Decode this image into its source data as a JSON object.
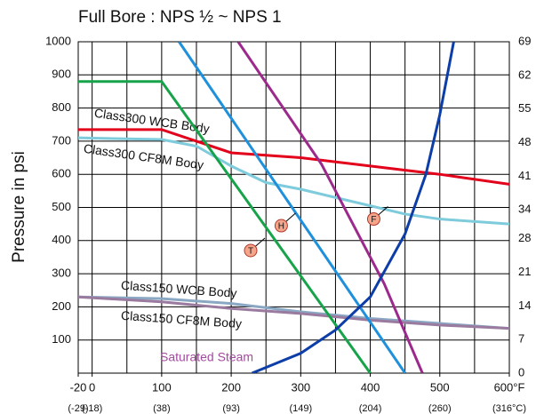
{
  "chart_data": {
    "type": "line",
    "title": "Full Bore : NPS ½ ~ NPS 1",
    "y_label": "Pressure in psi",
    "xlim": [
      -20,
      600
    ],
    "ylim": [
      0,
      1000
    ],
    "y2lim": [
      0,
      69
    ],
    "xticks": [
      -20,
      0,
      100,
      200,
      300,
      400,
      500,
      {
        "value": 600,
        "label": "600°F"
      }
    ],
    "x2_labels": [
      "(-29)",
      "(-18)",
      "(38)",
      "(93)",
      "(149)",
      "(204)",
      "(260)",
      "(316°C)"
    ],
    "xgrid": [
      0,
      50,
      100,
      150,
      200,
      250,
      300,
      350,
      400,
      450,
      500,
      550
    ],
    "yticks": [
      100,
      200,
      300,
      400,
      500,
      600,
      700,
      800,
      900,
      1000
    ],
    "y2ticks": [
      0,
      7,
      14,
      21,
      28,
      34,
      41,
      48,
      55,
      62,
      69
    ],
    "grid": true,
    "series": [
      {
        "name": "Class300 WCB Body",
        "color": "#e3001b",
        "x": [
          -20,
          100,
          150,
          200,
          300,
          400,
          500,
          600
        ],
        "values": [
          735,
          735,
          700,
          665,
          650,
          625,
          600,
          570
        ]
      },
      {
        "name": "Class300 CF8M Body",
        "color": "#7ecbdc",
        "x": [
          -20,
          100,
          150,
          200,
          250,
          300,
          400,
          450,
          500,
          600
        ],
        "values": [
          710,
          705,
          685,
          625,
          575,
          555,
          505,
          480,
          465,
          450
        ]
      },
      {
        "name": "Class150 WCB Body",
        "color": "#8aa8c4",
        "x": [
          -20,
          100,
          200,
          300,
          400,
          500,
          600
        ],
        "values": [
          230,
          225,
          210,
          185,
          165,
          150,
          135
        ]
      },
      {
        "name": "Class150 CF8M Body",
        "color": "#9a7a9e",
        "x": [
          -20,
          100,
          200,
          300,
          400,
          500,
          600
        ],
        "values": [
          230,
          215,
          195,
          180,
          160,
          145,
          135
        ]
      },
      {
        "color": "#17a34a",
        "x": [
          -20,
          100,
          400
        ],
        "values": [
          880,
          880,
          0
        ]
      },
      {
        "color": "#1e90dc",
        "x": [
          125,
          450
        ],
        "values": [
          1000,
          0
        ]
      },
      {
        "color": "#9c2a8c",
        "x": [
          210,
          330,
          420,
          475
        ],
        "values": [
          1000,
          630,
          270,
          0
        ]
      },
      {
        "name": "Saturated Steam",
        "color": "#0d3ea8",
        "x": [
          230,
          300,
          350,
          400,
          450,
          480,
          500,
          520
        ],
        "values": [
          0,
          60,
          130,
          230,
          420,
          600,
          780,
          1000
        ]
      }
    ],
    "markers": [
      {
        "label": "T",
        "x": 228,
        "y": 370
      },
      {
        "label": "H",
        "x": 272,
        "y": 445
      },
      {
        "label": "F",
        "x": 405,
        "y": 465
      }
    ]
  }
}
